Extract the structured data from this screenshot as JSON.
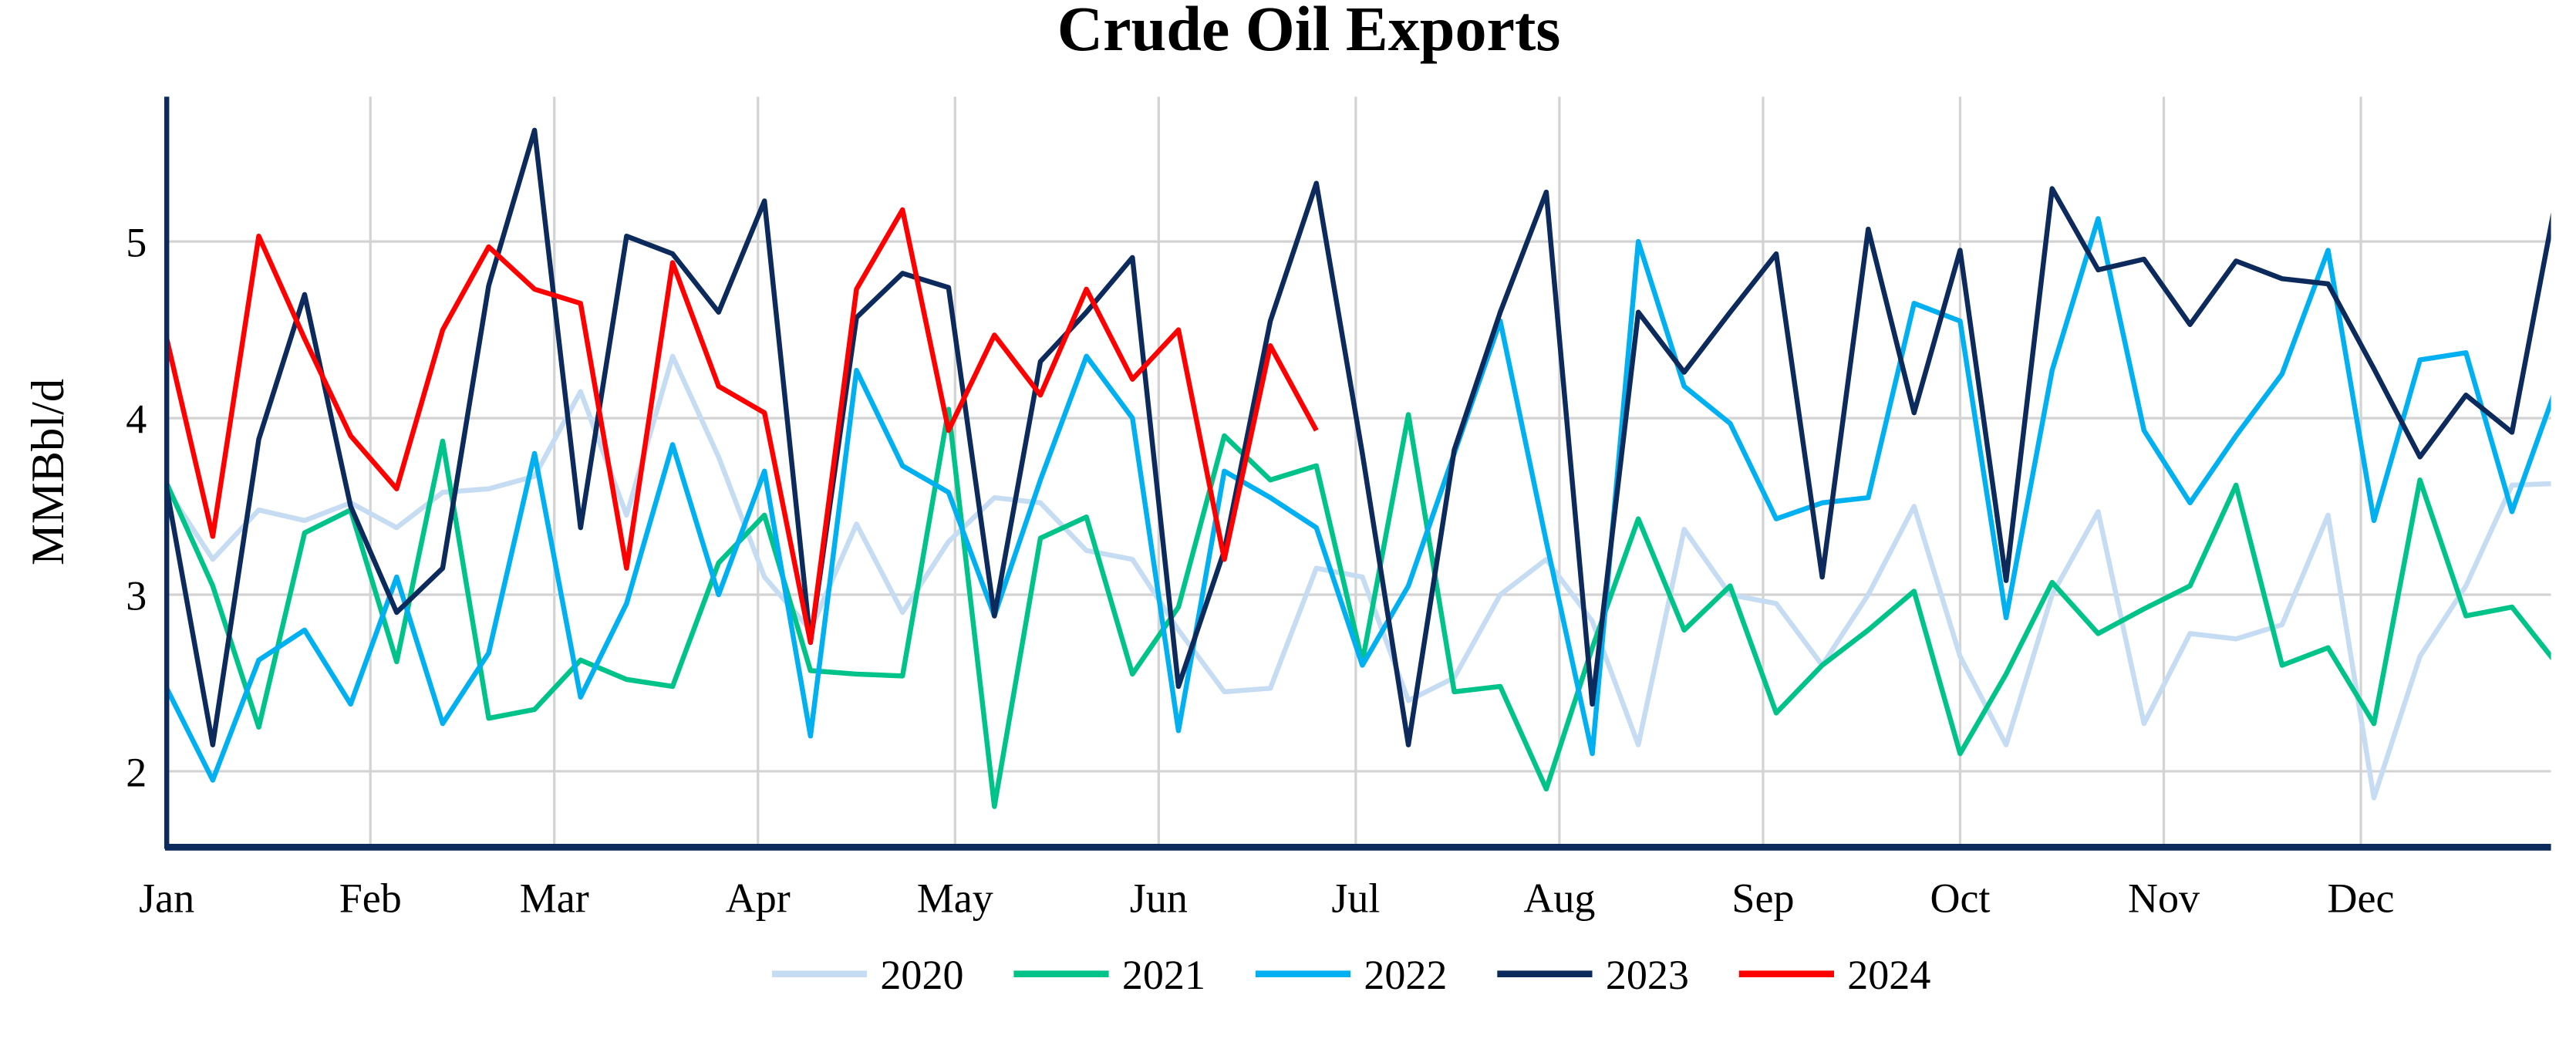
{
  "chart_data": {
    "type": "line",
    "title": "Crude Oil Exports",
    "xlabel": "",
    "ylabel": "MMBbl/d",
    "ylim": [
      1.57,
      5.82
    ],
    "yticks": [
      2,
      3,
      4,
      5
    ],
    "x_unit": "week of year",
    "month_labels": [
      "Jan",
      "Feb",
      "Mar",
      "Apr",
      "May",
      "Jun",
      "Jul",
      "Aug",
      "Sep",
      "Oct",
      "Nov",
      "Dec"
    ],
    "month_start_days": [
      0,
      31,
      59,
      90,
      120,
      151,
      181,
      212,
      243,
      273,
      304,
      334
    ],
    "grid": true,
    "legend_position": "bottom",
    "series": [
      {
        "name": "2020",
        "color": "#c5dcf3",
        "values": [
          3.6,
          3.2,
          3.48,
          3.42,
          3.52,
          3.38,
          3.58,
          3.6,
          3.67,
          4.15,
          3.45,
          4.35,
          3.78,
          3.1,
          2.8,
          3.4,
          2.9,
          3.3,
          3.55,
          3.52,
          3.25,
          3.2,
          2.8,
          2.45,
          2.47,
          3.15,
          3.1,
          2.4,
          2.53,
          3.0,
          3.2,
          2.85,
          2.15,
          3.37,
          3.0,
          2.95,
          2.6,
          3.0,
          3.5,
          2.65,
          2.15,
          3.0,
          3.47,
          2.27,
          2.78,
          2.75,
          2.83,
          3.45,
          1.85,
          2.65,
          3.05,
          3.62,
          3.63
        ]
      },
      {
        "name": "2021",
        "color": "#00c389",
        "values": [
          3.63,
          3.05,
          2.25,
          3.35,
          3.48,
          2.62,
          3.87,
          2.3,
          2.35,
          2.63,
          2.52,
          2.48,
          3.18,
          3.45,
          2.57,
          2.55,
          2.54,
          4.05,
          1.8,
          3.32,
          3.44,
          2.55,
          2.93,
          3.9,
          3.65,
          3.73,
          2.62,
          4.02,
          2.45,
          2.48,
          1.9,
          2.7,
          3.43,
          2.8,
          3.05,
          2.33,
          2.6,
          2.8,
          3.02,
          2.1,
          2.55,
          3.07,
          2.78,
          2.92,
          3.05,
          3.62,
          2.6,
          2.7,
          2.27,
          3.65,
          2.88,
          2.93,
          2.6
        ]
      },
      {
        "name": "2022",
        "color": "#00b0f0",
        "values": [
          2.47,
          1.95,
          2.63,
          2.8,
          2.38,
          3.1,
          2.27,
          2.67,
          3.8,
          2.42,
          2.95,
          3.85,
          3.0,
          3.7,
          2.2,
          4.27,
          3.73,
          3.58,
          2.88,
          3.65,
          4.35,
          4.0,
          2.23,
          3.7,
          3.55,
          3.38,
          2.6,
          3.05,
          3.8,
          4.55,
          3.3,
          2.1,
          5.0,
          4.18,
          3.97,
          3.43,
          3.52,
          3.55,
          4.65,
          4.55,
          2.87,
          4.27,
          5.13,
          3.93,
          3.52,
          3.9,
          4.25,
          4.95,
          3.42,
          4.33,
          4.37,
          3.47,
          4.2
        ]
      },
      {
        "name": "2023",
        "color": "#0c2a5b",
        "values": [
          3.6,
          2.15,
          3.88,
          4.7,
          3.5,
          2.9,
          3.15,
          4.75,
          5.63,
          3.38,
          5.03,
          4.93,
          4.6,
          5.23,
          2.73,
          4.57,
          4.82,
          4.74,
          2.88,
          4.32,
          4.6,
          4.91,
          2.48,
          3.25,
          4.55,
          5.33,
          3.8,
          2.15,
          3.82,
          4.6,
          5.28,
          2.38,
          4.6,
          4.26,
          4.6,
          4.93,
          3.1,
          5.07,
          4.03,
          4.95,
          3.08,
          5.3,
          4.84,
          4.9,
          4.53,
          4.89,
          4.79,
          4.76,
          4.28,
          3.78,
          4.13,
          3.92,
          5.3
        ]
      },
      {
        "name": "2024",
        "color": "#ff0000",
        "values": [
          4.45,
          3.33,
          5.03,
          4.45,
          3.9,
          3.6,
          4.5,
          4.97,
          4.73,
          4.65,
          3.15,
          4.88,
          4.18,
          4.03,
          2.73,
          4.73,
          5.18,
          3.93,
          4.47,
          4.13,
          4.73,
          4.22,
          4.5,
          3.2,
          4.41,
          3.93
        ]
      }
    ]
  }
}
